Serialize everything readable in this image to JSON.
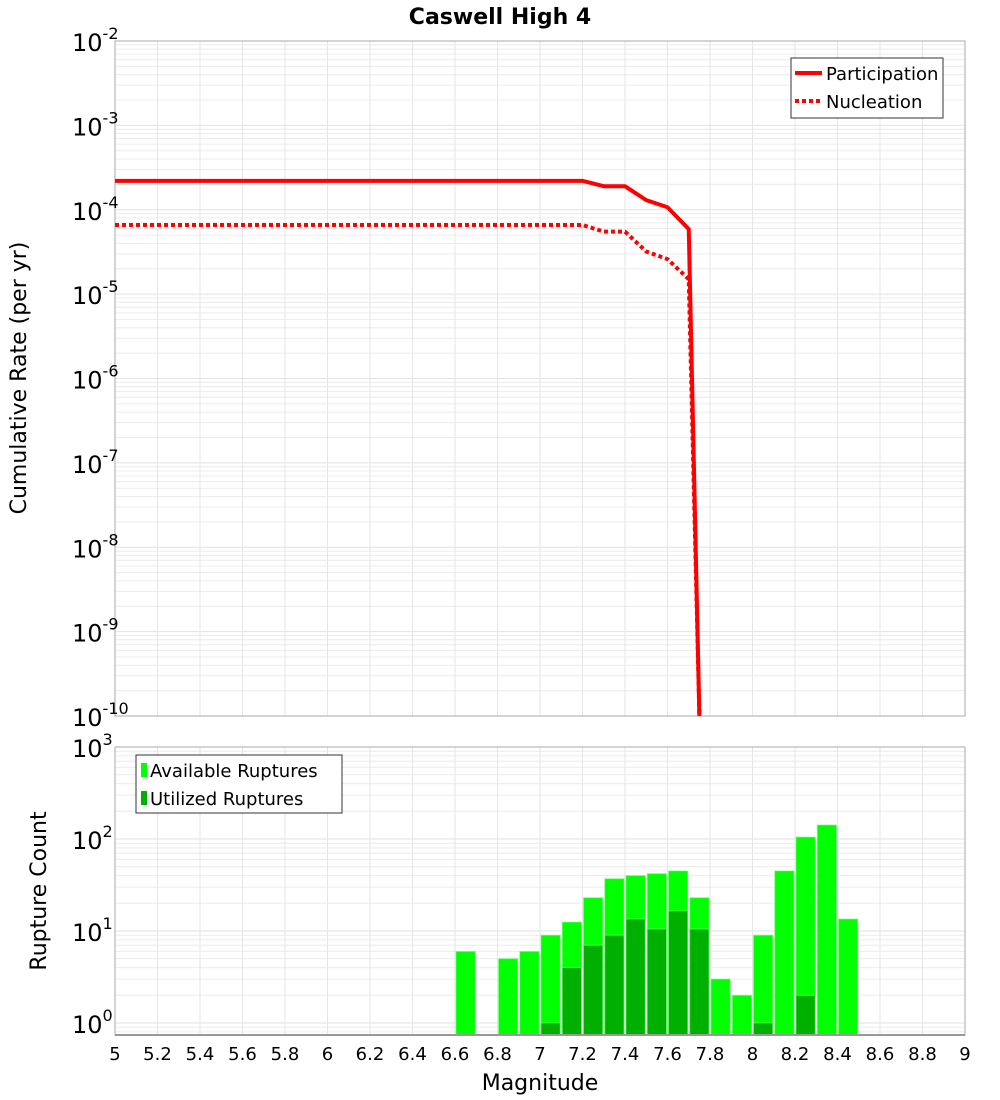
{
  "chart_data": [
    {
      "type": "line",
      "title": "Caswell High 4",
      "xlabel": "",
      "ylabel": "Cumulative Rate (per yr)",
      "yscale": "log",
      "xlim": [
        5,
        9
      ],
      "ylim": [
        1e-10,
        0.01
      ],
      "ytick_exponents": [
        -2,
        -3,
        -4,
        -5,
        -6,
        -7,
        -8,
        -9,
        -10
      ],
      "grid": true,
      "legend_position": "top-right",
      "series": [
        {
          "name": "Participation",
          "style": "solid",
          "color": "#ff0000",
          "x": [
            5.0,
            7.2,
            7.3,
            7.4,
            7.5,
            7.6,
            7.7,
            7.75
          ],
          "y": [
            0.00022,
            0.00022,
            0.00019,
            0.00019,
            0.00013,
            0.000107,
            5.9e-05,
            1e-10
          ]
        },
        {
          "name": "Nucleation",
          "style": "dotted",
          "color": "#ff0000",
          "x": [
            5.0,
            7.2,
            7.3,
            7.4,
            7.5,
            7.6,
            7.7,
            7.75
          ],
          "y": [
            6.6e-05,
            6.6e-05,
            5.5e-05,
            5.5e-05,
            3.2e-05,
            2.6e-05,
            1.5e-05,
            1e-10
          ]
        }
      ]
    },
    {
      "type": "bar",
      "title": "",
      "xlabel": "Magnitude",
      "ylabel": "Rupture Count",
      "yscale": "log",
      "xlim": [
        5,
        9
      ],
      "ylim": [
        0.74,
        1000
      ],
      "ytick_exponents": [
        0,
        1,
        2,
        3
      ],
      "xticks": [
        "5",
        "5.2",
        "5.4",
        "5.6",
        "5.8",
        "6",
        "6.2",
        "6.4",
        "6.6",
        "6.8",
        "7",
        "7.2",
        "7.4",
        "7.6",
        "7.8",
        "8",
        "8.2",
        "8.4",
        "8.6",
        "8.8",
        "9"
      ],
      "grid": true,
      "legend_position": "top-left",
      "bin_width": 0.1,
      "series": [
        {
          "name": "Available Ruptures",
          "color": "#00ff00",
          "x": [
            6.65,
            6.85,
            6.95,
            7.05,
            7.15,
            7.25,
            7.35,
            7.45,
            7.55,
            7.65,
            7.75,
            7.85,
            7.95,
            8.05,
            8.15,
            8.25,
            8.35,
            8.45
          ],
          "values": [
            6,
            5,
            6,
            9,
            12.5,
            23,
            37,
            40,
            42,
            45,
            23,
            3,
            2,
            9,
            45,
            105,
            142,
            13.5
          ]
        },
        {
          "name": "Utilized Ruptures",
          "color": "#00b000",
          "x": [
            7.05,
            7.15,
            7.25,
            7.35,
            7.45,
            7.55,
            7.65,
            7.75,
            8.05,
            8.25
          ],
          "values": [
            1,
            4,
            7,
            9,
            13.5,
            10.5,
            16.5,
            10.5,
            1,
            2
          ]
        }
      ]
    }
  ]
}
